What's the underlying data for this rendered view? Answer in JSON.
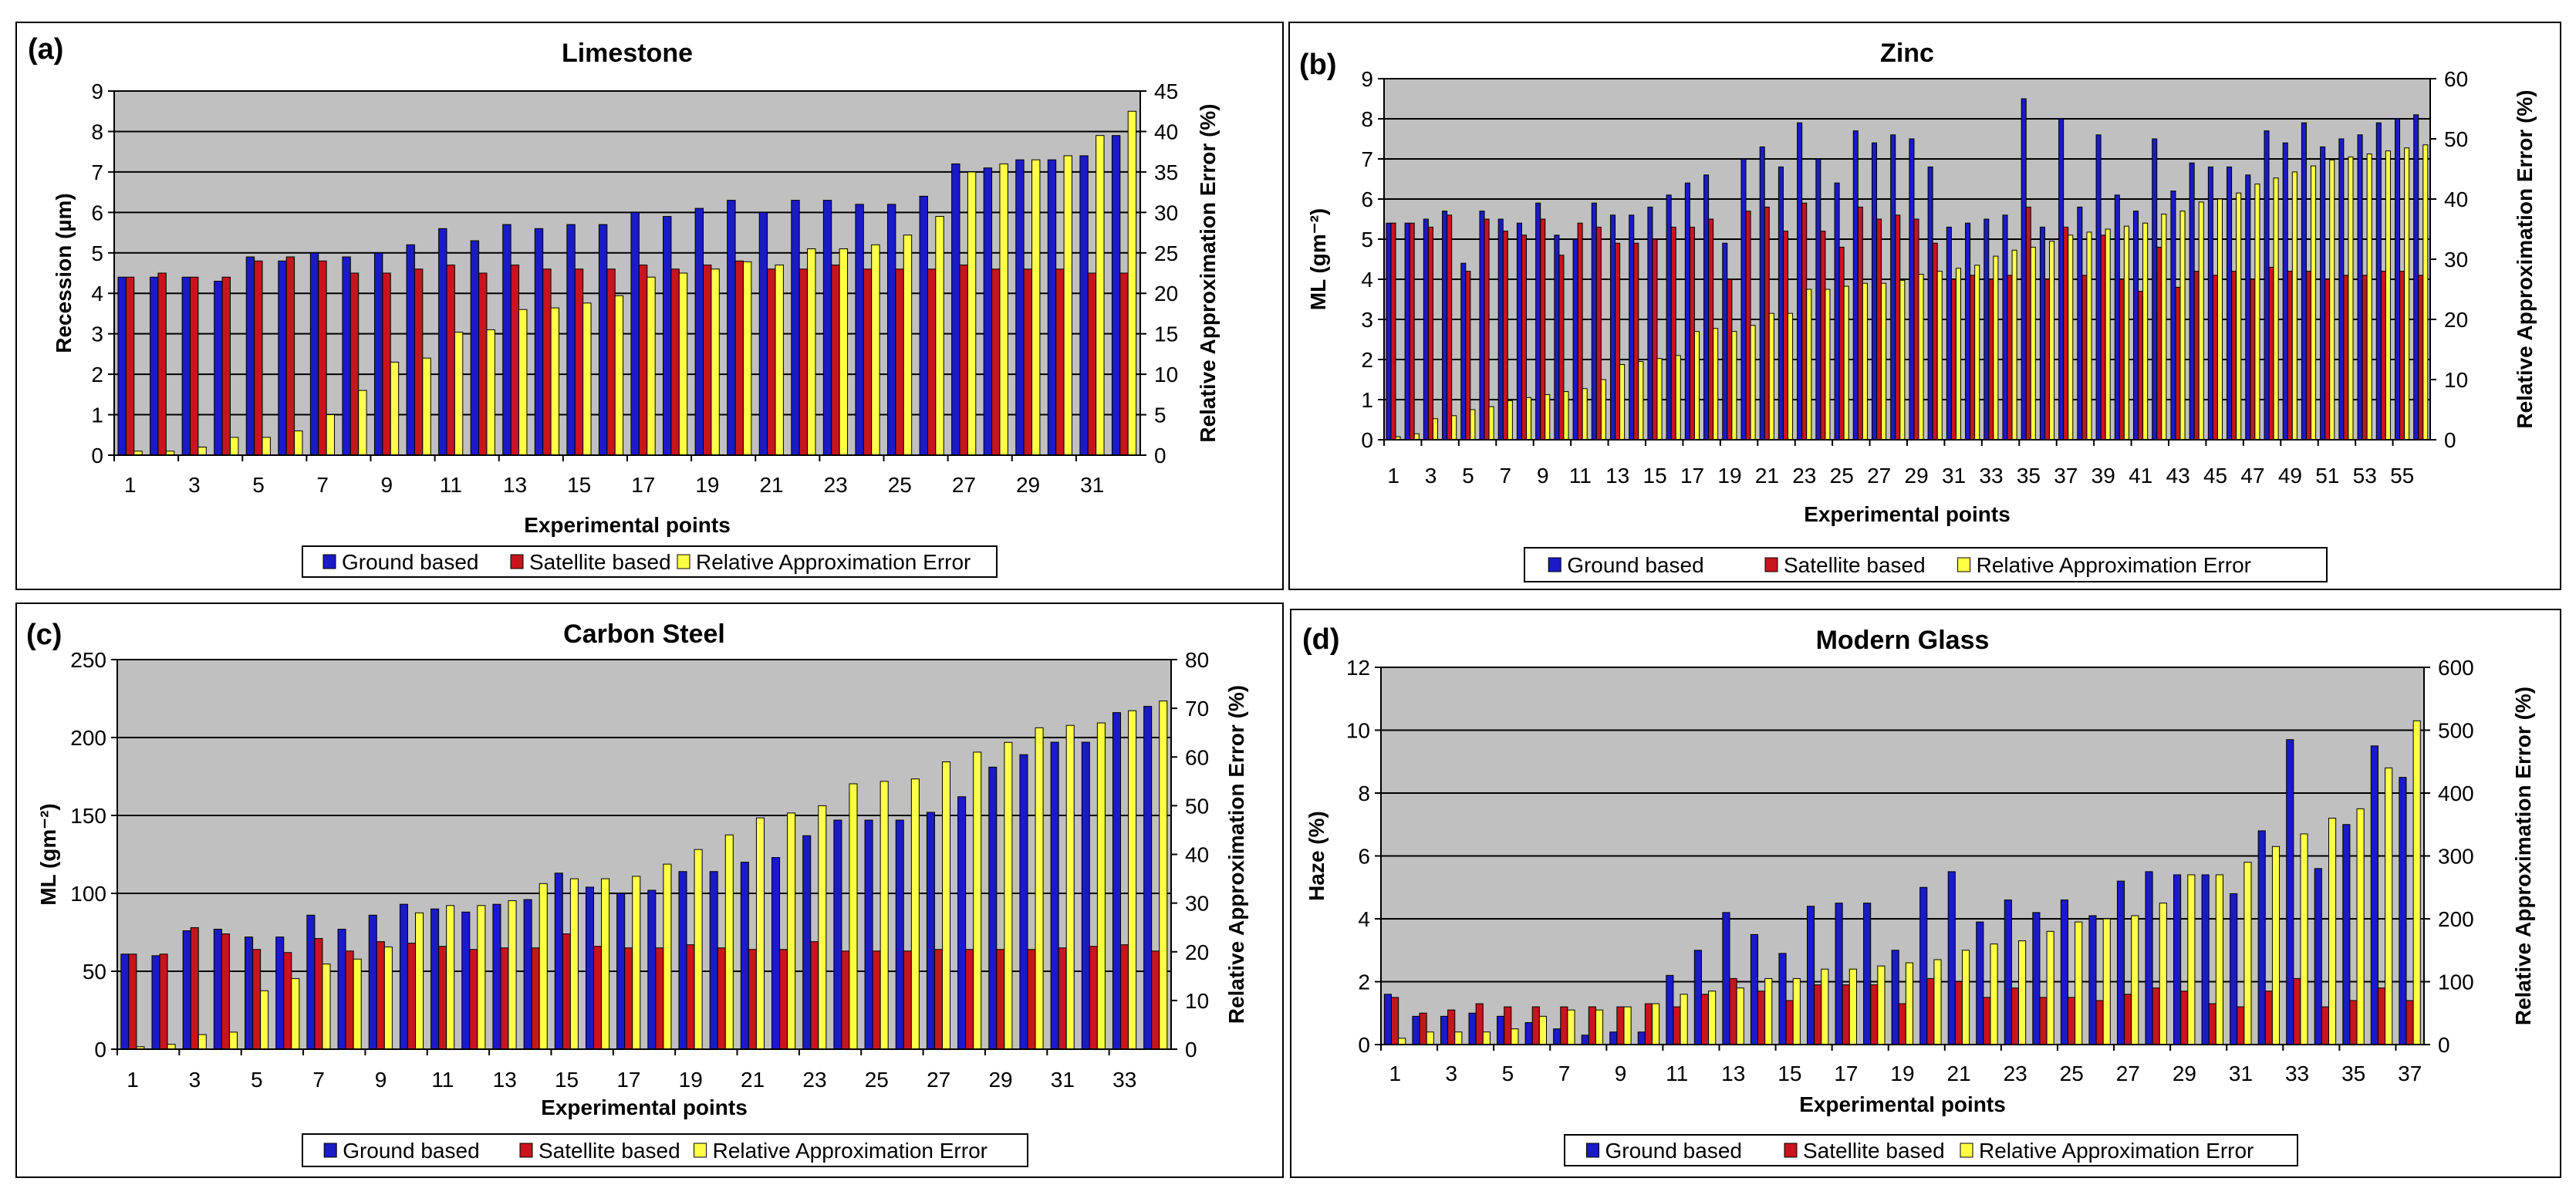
{
  "colors": {
    "ground": "#1a1ac8",
    "satellite": "#c8141e",
    "error": "#ffff46",
    "plot_bg": "#c0c0c0",
    "grid": "#000000"
  },
  "chart_data": [
    {
      "type": "bar",
      "label": "(a)",
      "title": "Limestone",
      "xlabel": "Experimental points",
      "ylabel": "Recession (µm)",
      "y2label": "Relative Approximation Error (%)",
      "ylim": [
        0,
        9
      ],
      "y2lim": [
        0,
        45
      ],
      "yticks": [
        0,
        1,
        2,
        3,
        4,
        5,
        6,
        7,
        8,
        9
      ],
      "y2ticks": [
        0,
        5,
        10,
        15,
        20,
        25,
        30,
        35,
        40,
        45
      ],
      "xtick_labels": [
        "1",
        "3",
        "5",
        "7",
        "9",
        "11",
        "13",
        "15",
        "17",
        "19",
        "21",
        "23",
        "25",
        "27",
        "29",
        "31"
      ],
      "legend": [
        "Ground based",
        "Satellite based",
        "Relative Approximation Error"
      ],
      "series": [
        {
          "name": "Ground based",
          "axis": "left",
          "values": [
            4.4,
            4.4,
            4.4,
            4.3,
            4.9,
            4.8,
            5.0,
            4.9,
            5.0,
            5.2,
            5.6,
            5.3,
            5.7,
            5.6,
            5.7,
            5.7,
            6.0,
            5.9,
            6.1,
            6.3,
            6.0,
            6.3,
            6.3,
            6.2,
            6.2,
            6.4,
            7.2,
            7.1,
            7.3,
            7.3,
            7.4,
            7.9
          ]
        },
        {
          "name": "Satellite based",
          "axis": "left",
          "values": [
            4.4,
            4.5,
            4.4,
            4.4,
            4.8,
            4.9,
            4.8,
            4.5,
            4.5,
            4.6,
            4.7,
            4.5,
            4.7,
            4.6,
            4.6,
            4.6,
            4.7,
            4.6,
            4.7,
            4.8,
            4.6,
            4.6,
            4.7,
            4.6,
            4.6,
            4.6,
            4.7,
            4.6,
            4.6,
            4.6,
            4.5,
            4.5
          ]
        },
        {
          "name": "Relative Approximation Error",
          "axis": "right",
          "values": [
            0.5,
            0.5,
            1.0,
            2.2,
            2.2,
            3.0,
            5.0,
            8.0,
            11.5,
            12.0,
            15.2,
            15.5,
            18.0,
            18.2,
            18.8,
            19.7,
            22.0,
            22.5,
            23.0,
            23.9,
            23.5,
            25.5,
            25.5,
            26.0,
            27.2,
            29.5,
            35.0,
            36.0,
            36.5,
            37.0,
            39.5,
            42.5
          ]
        }
      ]
    },
    {
      "type": "bar",
      "label": "(b)",
      "title": "Zinc",
      "xlabel": "Experimental points",
      "ylabel": "ML (gm⁻²)",
      "y2label": "Relative Approximation Error (%)",
      "ylim": [
        0,
        9
      ],
      "y2lim": [
        0,
        60
      ],
      "yticks": [
        0,
        1,
        2,
        3,
        4,
        5,
        6,
        7,
        8,
        9
      ],
      "y2ticks": [
        0,
        10,
        20,
        30,
        40,
        50,
        60
      ],
      "xtick_labels": [
        "1",
        "3",
        "5",
        "7",
        "9",
        "11",
        "13",
        "15",
        "17",
        "19",
        "21",
        "23",
        "25",
        "27",
        "29",
        "31",
        "33",
        "35",
        "37",
        "39",
        "41",
        "43",
        "45",
        "47",
        "49",
        "51",
        "53",
        "55"
      ],
      "legend": [
        "Ground based",
        "Satellite based",
        "Relative Approximation Error"
      ],
      "series": [
        {
          "name": "Ground based",
          "axis": "left",
          "values": [
            5.4,
            5.4,
            5.5,
            5.7,
            4.4,
            5.7,
            5.5,
            5.4,
            5.9,
            5.1,
            5.0,
            5.9,
            5.6,
            5.6,
            5.8,
            6.1,
            6.4,
            6.6,
            4.9,
            7.0,
            7.3,
            6.8,
            7.9,
            7.0,
            6.4,
            7.7,
            7.4,
            7.6,
            7.5,
            6.8,
            5.3,
            5.4,
            5.5,
            5.6,
            8.5,
            5.3,
            8.0,
            5.8,
            7.6,
            6.1,
            5.7,
            7.5,
            6.2,
            6.9,
            6.8,
            6.8,
            6.6,
            7.7,
            7.4,
            7.9,
            7.3,
            7.5,
            7.6,
            7.9,
            8.0,
            8.1
          ]
        },
        {
          "name": "Satellite based",
          "axis": "left",
          "values": [
            5.4,
            5.4,
            5.3,
            5.6,
            4.2,
            5.5,
            5.2,
            5.1,
            5.5,
            4.6,
            5.4,
            5.3,
            4.9,
            4.9,
            5.0,
            5.3,
            5.3,
            5.5,
            4.0,
            5.7,
            5.8,
            5.2,
            5.9,
            5.2,
            4.8,
            5.8,
            5.5,
            5.6,
            5.5,
            4.9,
            4.0,
            4.1,
            4.0,
            4.1,
            5.8,
            4.0,
            5.3,
            4.1,
            5.1,
            4.0,
            3.7,
            4.8,
            3.8,
            4.2,
            4.1,
            4.2,
            4.0,
            4.3,
            4.2,
            4.2,
            4.0,
            4.1,
            4.1,
            4.2,
            4.2,
            4.1
          ]
        },
        {
          "name": "Relative Approximation Error",
          "axis": "right",
          "values": [
            0.5,
            1.0,
            3.5,
            4.0,
            5.0,
            5.5,
            6.5,
            7.0,
            7.5,
            8.0,
            8.5,
            10.0,
            12.5,
            13.0,
            13.5,
            14.0,
            18.0,
            18.5,
            18.0,
            19.0,
            21.0,
            21.0,
            25.0,
            25.0,
            25.5,
            26.0,
            26.0,
            26.5,
            27.5,
            28.0,
            28.5,
            29.0,
            30.5,
            31.5,
            32.0,
            33.0,
            34.0,
            34.5,
            35.0,
            35.5,
            36.0,
            37.5,
            38.0,
            39.5,
            40.0,
            41.0,
            42.5,
            43.5,
            44.5,
            45.5,
            46.5,
            47.0,
            47.5,
            48.0,
            48.5,
            49.0
          ]
        }
      ]
    },
    {
      "type": "bar",
      "label": "(c)",
      "title": "Carbon Steel",
      "xlabel": "Experimental points",
      "ylabel": "ML (gm⁻²)",
      "y2label": "Relative Approximation Error (%)",
      "ylim": [
        0,
        250
      ],
      "y2lim": [
        0,
        80
      ],
      "yticks": [
        0,
        50,
        100,
        150,
        200,
        250
      ],
      "y2ticks": [
        0,
        10,
        20,
        30,
        40,
        50,
        60,
        70,
        80
      ],
      "xtick_labels": [
        "1",
        "3",
        "5",
        "7",
        "9",
        "11",
        "13",
        "15",
        "17",
        "19",
        "21",
        "23",
        "25",
        "27",
        "29",
        "31",
        "33"
      ],
      "legend": [
        "Ground based",
        "Satellite based",
        "Relative Approximation Error"
      ],
      "series": [
        {
          "name": "Ground based",
          "axis": "left",
          "values": [
            61,
            60,
            76,
            77,
            72,
            72,
            86,
            77,
            86,
            93,
            90,
            88,
            93,
            96,
            113,
            104,
            100,
            102,
            114,
            114,
            120,
            123,
            137,
            147,
            147,
            147,
            152,
            162,
            181,
            189,
            197,
            197,
            216,
            220
          ]
        },
        {
          "name": "Satellite based",
          "axis": "left",
          "values": [
            61,
            61,
            78,
            74,
            64,
            62,
            71,
            63,
            69,
            68,
            66,
            64,
            65,
            65,
            74,
            66,
            65,
            65,
            67,
            65,
            64,
            64,
            69,
            63,
            63,
            63,
            64,
            64,
            64,
            64,
            65,
            66,
            67,
            63
          ]
        },
        {
          "name": "Relative Approximation Error",
          "axis": "right",
          "values": [
            0.5,
            1.0,
            3.0,
            3.5,
            12.0,
            14.5,
            17.5,
            18.5,
            21.0,
            28.0,
            29.5,
            29.5,
            30.5,
            34.0,
            35.0,
            35.0,
            35.5,
            38.0,
            41.0,
            44.0,
            47.5,
            48.5,
            50.0,
            54.5,
            55.0,
            55.5,
            59.0,
            61.0,
            63.0,
            66.0,
            66.5,
            67.0,
            69.5,
            71.5
          ]
        }
      ]
    },
    {
      "type": "bar",
      "label": "(d)",
      "title": "Modern Glass",
      "xlabel": "Experimental points",
      "ylabel": "Haze (%)",
      "y2label": "Relative Approximation Error (%)",
      "ylim": [
        0,
        12
      ],
      "y2lim": [
        0,
        600
      ],
      "yticks": [
        0,
        2,
        4,
        6,
        8,
        10,
        12
      ],
      "y2ticks": [
        0,
        100,
        200,
        300,
        400,
        500,
        600
      ],
      "xtick_labels": [
        "1",
        "3",
        "5",
        "7",
        "9",
        "11",
        "13",
        "15",
        "17",
        "19",
        "21",
        "23",
        "25",
        "27",
        "29",
        "31",
        "33",
        "35",
        "37"
      ],
      "legend": [
        "Ground based",
        "Satellite based",
        "Relative Approximation Error"
      ],
      "series": [
        {
          "name": "Ground based",
          "axis": "left",
          "values": [
            1.6,
            0.9,
            0.9,
            1.0,
            0.9,
            0.7,
            0.5,
            0.3,
            0.4,
            0.4,
            2.2,
            3.0,
            4.2,
            3.5,
            2.9,
            4.4,
            4.5,
            4.5,
            3.0,
            5.0,
            5.5,
            3.9,
            4.6,
            4.2,
            4.6,
            4.1,
            5.2,
            5.5,
            5.4,
            5.4,
            4.8,
            6.8,
            9.7,
            5.6,
            7.0,
            9.5,
            8.5
          ]
        },
        {
          "name": "Satellite based",
          "axis": "left",
          "values": [
            1.5,
            1.0,
            1.1,
            1.3,
            1.2,
            1.2,
            1.2,
            1.2,
            1.2,
            1.3,
            1.2,
            1.6,
            2.1,
            1.7,
            1.4,
            1.9,
            1.9,
            1.9,
            1.3,
            2.1,
            2.0,
            1.5,
            1.8,
            1.5,
            1.5,
            1.4,
            1.6,
            1.8,
            1.7,
            1.3,
            1.2,
            1.7,
            2.1,
            1.2,
            1.4,
            1.8,
            1.4
          ]
        },
        {
          "name": "Relative Approximation Error",
          "axis": "right",
          "values": [
            10,
            20,
            20,
            20,
            25,
            45,
            55,
            55,
            60,
            65,
            80,
            85,
            90,
            105,
            105,
            120,
            120,
            125,
            130,
            135,
            150,
            160,
            165,
            180,
            195,
            200,
            205,
            225,
            270,
            270,
            290,
            315,
            335,
            360,
            375,
            440,
            515
          ]
        }
      ]
    }
  ]
}
